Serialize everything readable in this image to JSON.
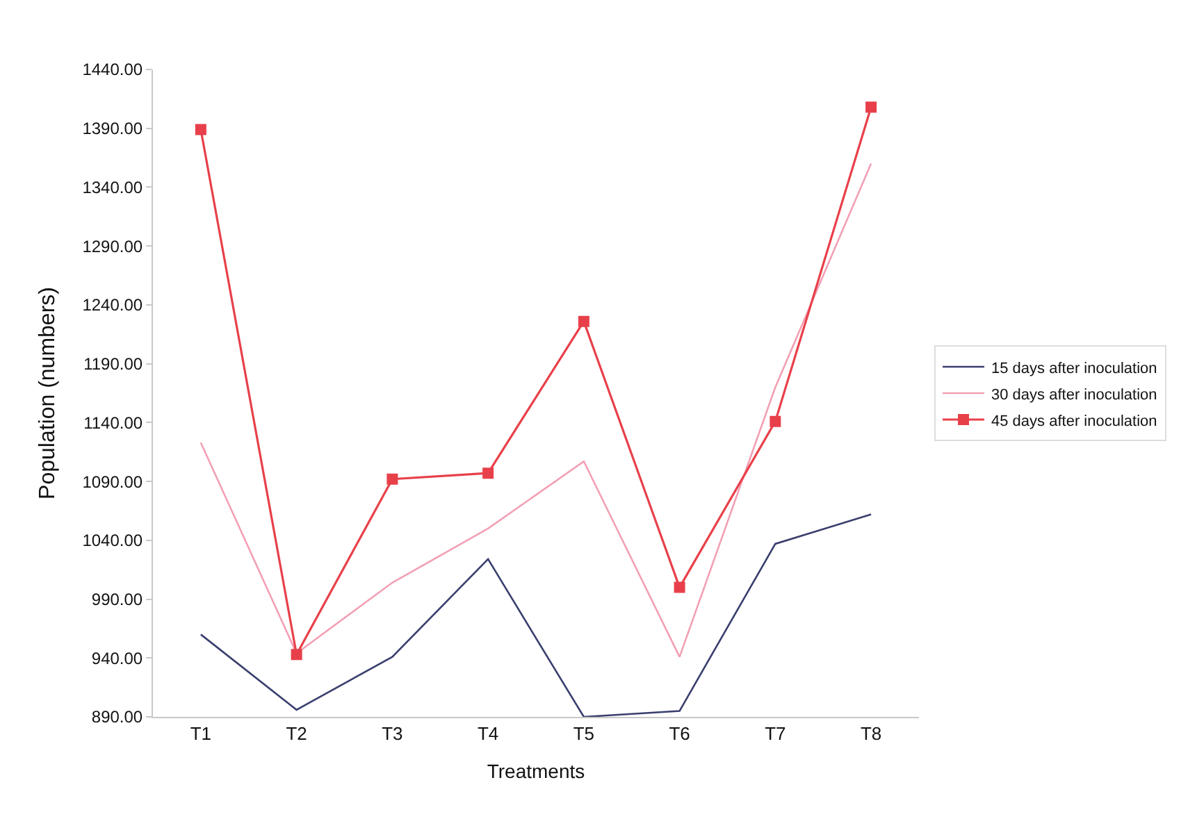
{
  "chart_data": {
    "type": "line",
    "xlabel": "Treatments",
    "ylabel": "Population (numbers)",
    "categories": [
      "T1",
      "T2",
      "T3",
      "T4",
      "T5",
      "T6",
      "T7",
      "T8"
    ],
    "series": [
      {
        "name": "15 days after inoculation",
        "color": "#3a3f6e",
        "marker": "none",
        "values": [
          960,
          896,
          941,
          1024,
          890,
          895,
          1037,
          1062
        ]
      },
      {
        "name": "30 days after inoculation",
        "color": "#f2a0b4",
        "marker": "none",
        "values": [
          1123,
          944,
          1004,
          1050,
          1107,
          941,
          1170,
          1360
        ]
      },
      {
        "name": "45 days after inoculation",
        "color": "#e8404a",
        "marker": "square",
        "values": [
          1389,
          943,
          1092,
          1097,
          1226,
          1000,
          1141,
          1408
        ]
      }
    ],
    "ylim": [
      890,
      1440
    ],
    "yticks": [
      {
        "value": 890,
        "label": "890.00"
      },
      {
        "value": 940,
        "label": "940.00"
      },
      {
        "value": 990,
        "label": "990.00"
      },
      {
        "value": 1040,
        "label": "1040.00"
      },
      {
        "value": 1090,
        "label": "1090.00"
      },
      {
        "value": 1140,
        "label": "1140.00"
      },
      {
        "value": 1190,
        "label": "1190.00"
      },
      {
        "value": 1240,
        "label": "1240.00"
      },
      {
        "value": 1290,
        "label": "1290.00"
      },
      {
        "value": 1340,
        "label": "1340.00"
      },
      {
        "value": 1390,
        "label": "1390.00"
      },
      {
        "value": 1440,
        "label": "1440.00"
      }
    ],
    "grid": false,
    "legend": "right"
  }
}
